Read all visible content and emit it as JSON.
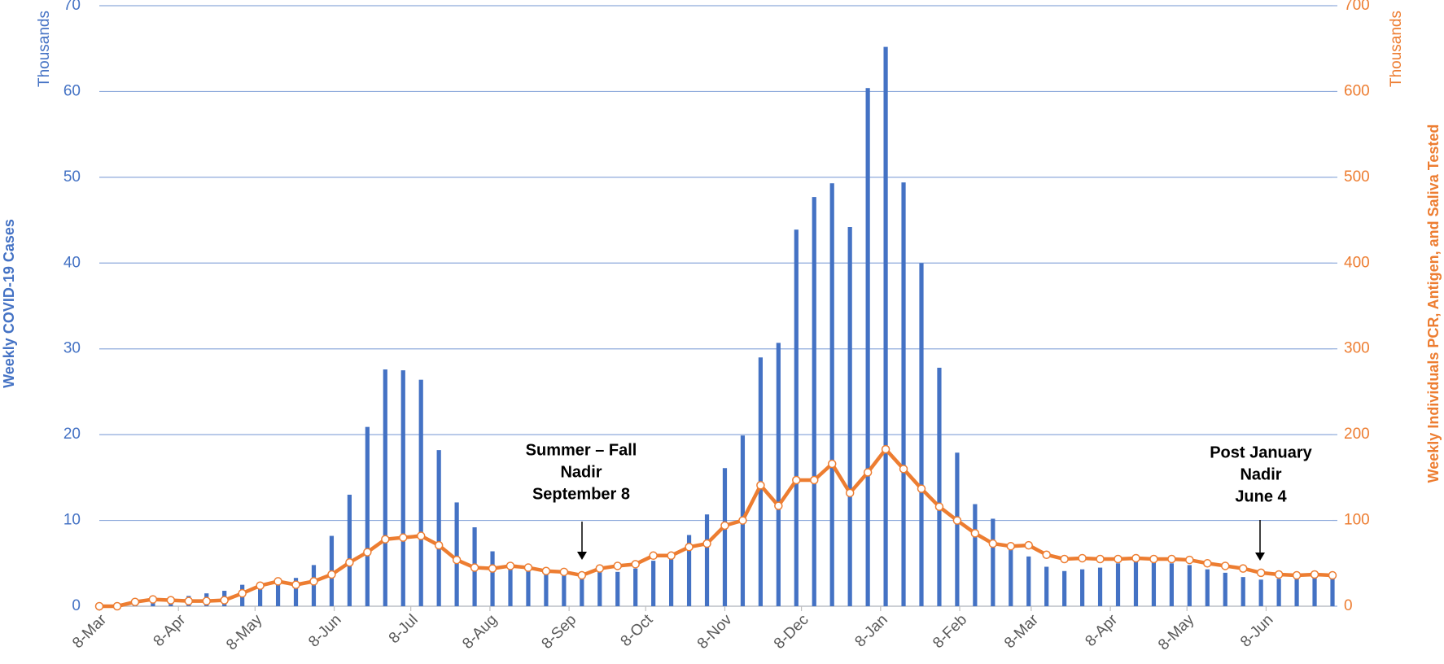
{
  "chart_data": {
    "type": "bar",
    "y_axis_title": "Weekly COVID-19 Cases",
    "y_axis_units": "Thousands",
    "y2_axis_title": "Weekly Individuals PCR, Antigen, and Saliva  Tested",
    "y2_axis_units": "Thousands",
    "x": [
      0,
      7,
      14,
      21,
      28,
      35,
      42,
      49,
      56,
      63,
      70,
      77,
      84,
      91,
      98,
      105,
      112,
      119,
      126,
      133,
      140,
      147,
      154,
      161,
      168,
      175,
      182,
      189,
      196,
      203,
      210,
      217,
      224,
      231,
      238,
      245,
      252,
      259,
      266,
      273,
      280,
      287,
      294,
      301,
      308,
      315,
      322,
      329,
      336,
      343,
      350,
      357,
      364,
      371,
      378,
      385,
      392,
      399,
      406,
      413,
      420,
      427,
      434,
      441,
      448,
      455,
      462,
      469,
      476,
      483
    ],
    "xlim": [
      0,
      483
    ],
    "xticks": [
      {
        "value": 0,
        "label": "8-Mar"
      },
      {
        "value": 31,
        "label": "8-Apr"
      },
      {
        "value": 61,
        "label": "8-May"
      },
      {
        "value": 92,
        "label": "8-Jun"
      },
      {
        "value": 122,
        "label": "8-Jul"
      },
      {
        "value": 153,
        "label": "8-Aug"
      },
      {
        "value": 184,
        "label": "8-Sep"
      },
      {
        "value": 214,
        "label": "8-Oct"
      },
      {
        "value": 245,
        "label": "8-Nov"
      },
      {
        "value": 275,
        "label": "8-Dec"
      },
      {
        "value": 306,
        "label": "8-Jan"
      },
      {
        "value": 337,
        "label": "8-Feb"
      },
      {
        "value": 365,
        "label": "8-Mar"
      },
      {
        "value": 396,
        "label": "8-Apr"
      },
      {
        "value": 426,
        "label": "8-May"
      },
      {
        "value": 457,
        "label": "8-Jun"
      }
    ],
    "ylim": [
      0,
      70
    ],
    "yticks": [
      0,
      10,
      20,
      30,
      40,
      50,
      60,
      70
    ],
    "y2lim": [
      0,
      700
    ],
    "y2ticks": [
      0,
      100,
      200,
      300,
      400,
      500,
      600,
      700
    ],
    "grid": true,
    "series": [
      {
        "type": "bar",
        "color": "#4472c4",
        "values": [
          0,
          0.1,
          0.3,
          0.8,
          1.1,
          1.2,
          1.5,
          1.8,
          2.5,
          2.8,
          3.0,
          3.3,
          4.8,
          8.2,
          13.0,
          20.9,
          27.6,
          27.5,
          26.4,
          18.2,
          12.1,
          9.2,
          6.4,
          5.0,
          4.6,
          4.2,
          4.0,
          3.8,
          4.3,
          4.0,
          4.4,
          5.3,
          6.3,
          8.3,
          10.7,
          16.1,
          19.9,
          29.0,
          30.7,
          43.9,
          47.7,
          49.3,
          44.2,
          60.4,
          65.2,
          49.4,
          40.0,
          27.8,
          17.9,
          11.9,
          10.2,
          7.0,
          5.8,
          4.6,
          4.1,
          4.3,
          4.5,
          5.0,
          5.2,
          5.2,
          5.0,
          4.8,
          4.3,
          3.9,
          3.4,
          3.1,
          3.2,
          3.3,
          3.5,
          3.3
        ]
      },
      {
        "type": "line",
        "axis": "y2",
        "color": "#ed7d31",
        "values": [
          0,
          0,
          5,
          8,
          7,
          6,
          6,
          7,
          15,
          24,
          29,
          25,
          29,
          37,
          51,
          63,
          78,
          80,
          82,
          71,
          54,
          45,
          44,
          47,
          45,
          41,
          40,
          36,
          44,
          47,
          49,
          59,
          59,
          69,
          73,
          94,
          100,
          141,
          117,
          147,
          147,
          166,
          132,
          156,
          183,
          160,
          137,
          116,
          100,
          85,
          73,
          70,
          71,
          60,
          55,
          56,
          55,
          55,
          56,
          55,
          55,
          54,
          50,
          47,
          44,
          39,
          37,
          36,
          37,
          36
        ]
      }
    ],
    "annotations": [
      {
        "lines": [
          "Summer – Fall",
          "Nadir",
          "September 8"
        ]
      },
      {
        "lines": [
          "Post January",
          "Nadir",
          "June 4"
        ]
      }
    ]
  }
}
